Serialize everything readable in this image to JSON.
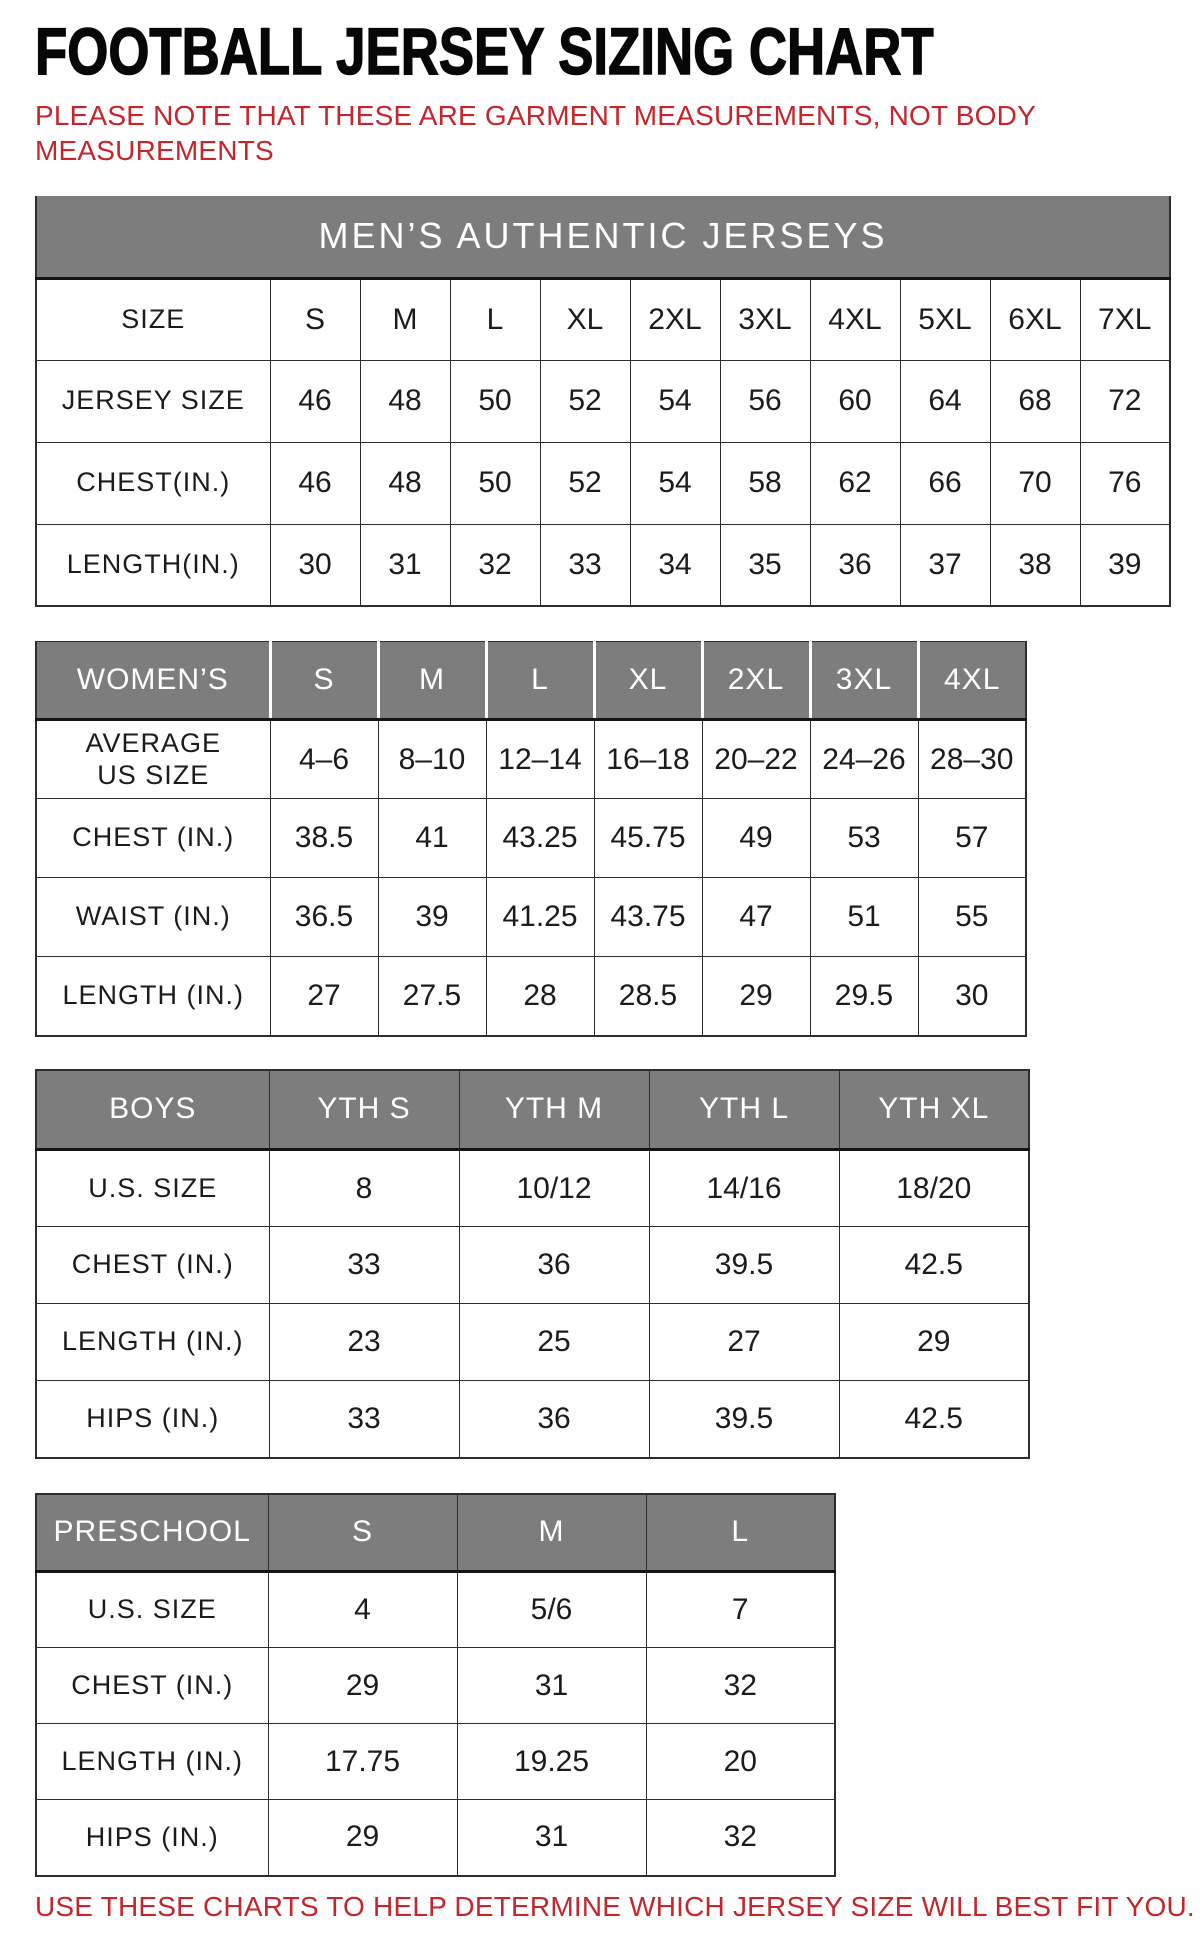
{
  "page": {
    "title": "FOOTBALL JERSEY SIZING CHART",
    "note_line1": "PLEASE NOTE THAT THESE ARE GARMENT MEASUREMENTS, NOT BODY",
    "note_line2": "MEASUREMENTS",
    "footer": "USE THESE CHARTS TO HELP DETERMINE WHICH JERSEY SIZE WILL BEST FIT YOU.",
    "colors": {
      "accent_red": "#C4262B",
      "header_gray": "#7D7D7D",
      "header_text": "#FFFFFF",
      "cell_text": "#1B1B1B"
    }
  },
  "chart_data": [
    {
      "type": "table",
      "id": "mens",
      "banner": "MEN’S AUTHENTIC JERSEYS",
      "rows": [
        [
          "SIZE",
          "S",
          "M",
          "L",
          "XL",
          "2XL",
          "3XL",
          "4XL",
          "5XL",
          "6XL",
          "7XL"
        ],
        [
          "JERSEY SIZE",
          "46",
          "48",
          "50",
          "52",
          "54",
          "56",
          "60",
          "64",
          "68",
          "72"
        ],
        [
          "CHEST(IN.)",
          "46",
          "48",
          "50",
          "52",
          "54",
          "58",
          "62",
          "66",
          "70",
          "76"
        ],
        [
          "LENGTH(IN.)",
          "30",
          "31",
          "32",
          "33",
          "34",
          "35",
          "36",
          "37",
          "38",
          "39"
        ]
      ]
    },
    {
      "type": "table",
      "id": "womens",
      "header_row": [
        "WOMEN’S",
        "S",
        "M",
        "L",
        "XL",
        "2XL",
        "3XL",
        "4XL"
      ],
      "rows": [
        [
          "AVERAGE\nUS SIZE",
          "4–6",
          "8–10",
          "12–14",
          "16–18",
          "20–22",
          "24–26",
          "28–30"
        ],
        [
          "CHEST (IN.)",
          "38.5",
          "41",
          "43.25",
          "45.75",
          "49",
          "53",
          "57"
        ],
        [
          "WAIST (IN.)",
          "36.5",
          "39",
          "41.25",
          "43.75",
          "47",
          "51",
          "55"
        ],
        [
          "LENGTH (IN.)",
          "27",
          "27.5",
          "28",
          "28.5",
          "29",
          "29.5",
          "30"
        ]
      ]
    },
    {
      "type": "table",
      "id": "boys",
      "header_row": [
        "BOYS",
        "YTH S",
        "YTH M",
        "YTH L",
        "YTH XL"
      ],
      "rows": [
        [
          "U.S. SIZE",
          "8",
          "10/12",
          "14/16",
          "18/20"
        ],
        [
          "CHEST (IN.)",
          "33",
          "36",
          "39.5",
          "42.5"
        ],
        [
          "LENGTH (IN.)",
          "23",
          "25",
          "27",
          "29"
        ],
        [
          "HIPS (IN.)",
          "33",
          "36",
          "39.5",
          "42.5"
        ]
      ]
    },
    {
      "type": "table",
      "id": "preschool",
      "header_row": [
        "PRESCHOOL",
        "S",
        "M",
        "L"
      ],
      "rows": [
        [
          "U.S. SIZE",
          "4",
          "5/6",
          "7"
        ],
        [
          "CHEST (IN.)",
          "29",
          "31",
          "32"
        ],
        [
          "LENGTH (IN.)",
          "17.75",
          "19.25",
          "20"
        ],
        [
          "HIPS (IN.)",
          "29",
          "31",
          "32"
        ]
      ]
    }
  ]
}
